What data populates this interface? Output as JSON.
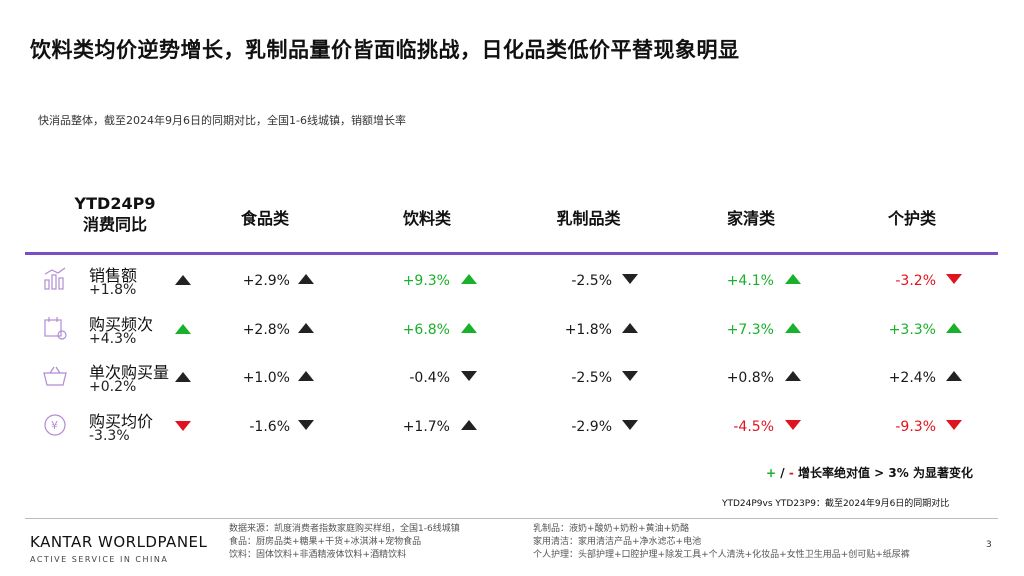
{
  "title": "饮料类均价逆势增长，乳制品量价皆面临挑战，日化品类低价平替现象明显",
  "subtitle": "快消品整体，截至2024年9月6日的同期对比，全国1-6线城镇，销额增长率",
  "header": {
    "ytd_line1": "YTD24P9",
    "ytd_line2": "消费同比",
    "columns": [
      "食品类",
      "饮料类",
      "乳制品类",
      "家清类",
      "个护类"
    ]
  },
  "rows": [
    {
      "label": "销售额",
      "overall": "+1.8%",
      "icon": "bar-chart-icon",
      "overall_arrow": "up",
      "overall_color": "dark",
      "cells": [
        {
          "value": "+2.9%",
          "arrow": "up",
          "color": "dark"
        },
        {
          "value": "+9.3%",
          "arrow": "up",
          "color": "green"
        },
        {
          "value": "-2.5%",
          "arrow": "down",
          "color": "dark"
        },
        {
          "value": "+4.1%",
          "arrow": "up",
          "color": "green"
        },
        {
          "value": "-3.2%",
          "arrow": "down",
          "color": "red"
        }
      ]
    },
    {
      "label": "购买频次",
      "overall": "+4.3%",
      "icon": "calendar-icon",
      "overall_arrow": "up",
      "overall_color": "green",
      "cells": [
        {
          "value": "+2.8%",
          "arrow": "up",
          "color": "dark"
        },
        {
          "value": "+6.8%",
          "arrow": "up",
          "color": "green"
        },
        {
          "value": "+1.8%",
          "arrow": "up",
          "color": "dark"
        },
        {
          "value": "+7.3%",
          "arrow": "up",
          "color": "green"
        },
        {
          "value": "+3.3%",
          "arrow": "up",
          "color": "green"
        }
      ]
    },
    {
      "label": "单次购买量",
      "overall": "+0.2%",
      "icon": "basket-icon",
      "overall_arrow": "up",
      "overall_color": "dark",
      "cells": [
        {
          "value": "+1.0%",
          "arrow": "up",
          "color": "dark"
        },
        {
          "value": "-0.4%",
          "arrow": "down",
          "color": "dark"
        },
        {
          "value": "-2.5%",
          "arrow": "down",
          "color": "dark"
        },
        {
          "value": "+0.8%",
          "arrow": "up",
          "color": "dark"
        },
        {
          "value": "+2.4%",
          "arrow": "up",
          "color": "dark"
        }
      ]
    },
    {
      "label": "购买均价",
      "overall": "-3.3%",
      "icon": "yuan-price-icon",
      "overall_arrow": "down",
      "overall_color": "red",
      "cells": [
        {
          "value": "-1.6%",
          "arrow": "down",
          "color": "dark"
        },
        {
          "value": "+1.7%",
          "arrow": "up",
          "color": "dark"
        },
        {
          "value": "-2.9%",
          "arrow": "down",
          "color": "dark"
        },
        {
          "value": "-4.5%",
          "arrow": "down",
          "color": "red"
        },
        {
          "value": "-9.3%",
          "arrow": "down",
          "color": "red"
        }
      ]
    }
  ],
  "note": {
    "plus": "+",
    "slash": " / ",
    "minus": "-",
    "text": "增长率绝对值 > 3% 为显著变化"
  },
  "period": "YTD24P9vs YTD23P9：截至2024年9月6日的同期对比",
  "footer": {
    "logo": "KANTAR WORLDPANEL",
    "logo_sub": "ACTIVE SERVICE IN CHINA",
    "col1": [
      "数据来源：凯度消费者指数家庭购买样组，全国1-6线城镇",
      "食品：厨房品类+糖果+干货+冰淇淋+宠物食品",
      "饮料：固体饮料+非酒精液体饮料+酒精饮料"
    ],
    "col2": [
      "乳制品：液奶+酸奶+奶粉+黄油+奶酪",
      "家用清洁：家用清洁产品+净水滤芯+电池",
      "个人护理：头部护理+口腔护理+除发工具+个人清洗+化妆品+女性卫生用品+创可贴+纸尿裤"
    ],
    "page": "3"
  },
  "colors": {
    "accent": "#7b4fc3",
    "green": "#19b02b",
    "red": "#e0141e",
    "dark": "#222222"
  }
}
